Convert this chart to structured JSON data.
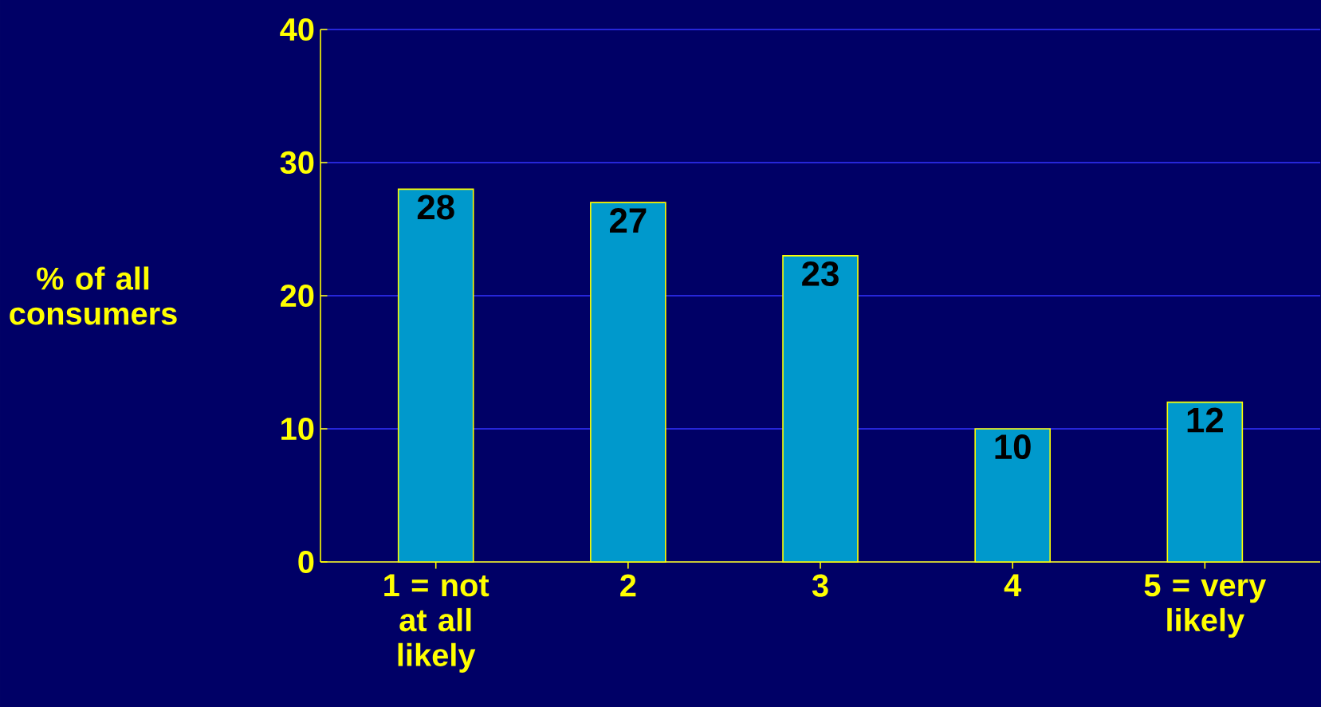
{
  "chart_data": {
    "type": "bar",
    "ylabel": "% of all consumers",
    "categories": [
      "1 = not at all likely",
      "2",
      "3",
      "4",
      "5 = very likely"
    ],
    "values": [
      28,
      27,
      23,
      10,
      12
    ],
    "color": "#0099cc",
    "ylim": [
      0,
      40
    ],
    "yticks": [
      0,
      10,
      20,
      30,
      40
    ],
    "grid": "y",
    "data_labels": true
  }
}
